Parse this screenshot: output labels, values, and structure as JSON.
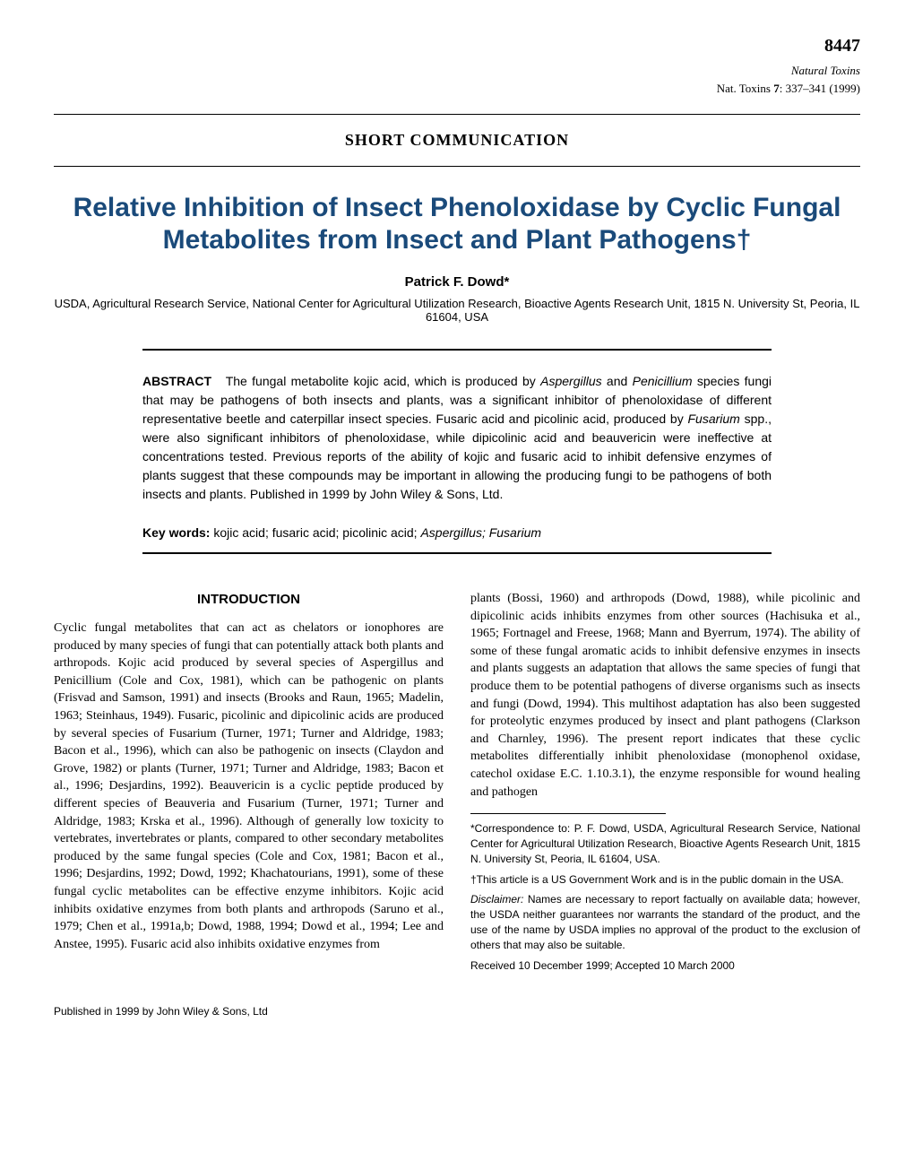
{
  "page_number": "8447",
  "journal_name": "Natural Toxins",
  "journal_abbrev": "Nat. Toxins",
  "volume": "7",
  "pages": "337–341",
  "year": "(1999)",
  "section_type": "SHORT COMMUNICATION",
  "title": "Relative Inhibition of Insect Phenoloxidase by Cyclic Fungal Metabolites from Insect and Plant Pathogens†",
  "author": "Patrick F. Dowd*",
  "affiliation": "USDA, Agricultural Research Service, National Center for Agricultural Utilization Research, Bioactive Agents Research Unit, 1815 N. University St, Peoria, IL 61604, USA",
  "abstract_label": "ABSTRACT",
  "abstract_text_1": "The fungal metabolite kojic acid, which is produced by ",
  "abstract_italic_1": "Aspergillus",
  "abstract_text_2": " and ",
  "abstract_italic_2": "Penicillium",
  "abstract_text_3": " species fungi that may be pathogens of both insects and plants, was a significant inhibitor of phenoloxidase of different representative beetle and caterpillar insect species. Fusaric acid and picolinic acid, produced by ",
  "abstract_italic_3": "Fusarium",
  "abstract_text_4": " spp., were also significant inhibitors of phenoloxidase, while dipicolinic acid and beauvericin were ineffective at concentrations tested. Previous reports of the ability of kojic and fusaric acid to inhibit defensive enzymes of plants suggest that these compounds may be important in allowing the producing fungi to be pathogens of both insects and plants. Published in 1999 by John Wiley & Sons, Ltd.",
  "keywords_label": "Key words:",
  "keywords_text_1": " kojic acid; fusaric acid; picolinic acid; ",
  "keywords_italic_1": "Aspergillus; Fusarium",
  "intro_heading": "INTRODUCTION",
  "col1_text": "Cyclic fungal metabolites that can act as chelators or ionophores are produced by many species of fungi that can potentially attack both plants and arthropods. Kojic acid produced by several species of Aspergillus and Penicillium (Cole and Cox, 1981), which can be pathogenic on plants (Frisvad and Samson, 1991) and insects (Brooks and Raun, 1965; Madelin, 1963; Steinhaus, 1949). Fusaric, picolinic and dipicolinic acids are produced by several species of Fusarium (Turner, 1971; Turner and Aldridge, 1983; Bacon et al., 1996), which can also be pathogenic on insects (Claydon and Grove, 1982) or plants (Turner, 1971; Turner and Aldridge, 1983; Bacon et al., 1996; Desjardins, 1992). Beauvericin is a cyclic peptide produced by different species of Beauveria and Fusarium (Turner, 1971; Turner and Aldridge, 1983; Krska et al., 1996). Although of generally low toxicity to vertebrates, invertebrates or plants, compared to other secondary metabolites produced by the same fungal species (Cole and Cox, 1981; Bacon et al., 1996; Desjardins, 1992; Dowd, 1992; Khachatourians, 1991), some of these fungal cyclic metabolites can be effective enzyme inhibitors. Kojic acid inhibits oxidative enzymes from both plants and arthropods (Saruno et al., 1979; Chen et al., 1991a,b; Dowd, 1988, 1994; Dowd et al., 1994; Lee and Anstee, 1995). Fusaric acid also inhibits oxidative enzymes from",
  "col2_text": "plants (Bossi, 1960) and arthropods (Dowd, 1988), while picolinic and dipicolinic acids inhibits enzymes from other sources (Hachisuka et al., 1965; Fortnagel and Freese, 1968; Mann and Byerrum, 1974). The ability of some of these fungal aromatic acids to inhibit defensive enzymes in insects and plants suggests an adaptation that allows the same species of fungi that produce them to be potential pathogens of diverse organisms such as insects and fungi (Dowd, 1994). This multihost adaptation has also been suggested for proteolytic enzymes produced by insect and plant pathogens (Clarkson and Charnley, 1996). The present report indicates that these cyclic metabolites differentially inhibit phenoloxidase (monophenol oxidase, catechol oxidase E.C. 1.10.3.1), the enzyme responsible for wound healing and pathogen",
  "footnote_correspondence": "*Correspondence to: P. F. Dowd, USDA, Agricultural Research Service, National Center for Agricultural Utilization Research, Bioactive Agents Research Unit, 1815 N. University St, Peoria, IL 61604, USA.",
  "footnote_gov": "†This article is a US Government Work and is in the public domain in the USA.",
  "footnote_disclaimer_label": "Disclaimer:",
  "footnote_disclaimer": " Names are necessary to report factually on available data; however, the USDA neither guarantees nor warrants the standard of the product, and the use of the name by USDA implies no approval of the product to the exclusion of others that may also be suitable.",
  "footnote_received": "Received 10 December 1999; Accepted 10 March 2000",
  "footer_text": "Published in 1999 by John Wiley & Sons, Ltd",
  "colors": {
    "title_color": "#1a4a7a",
    "text_color": "#000000",
    "background": "#ffffff"
  }
}
